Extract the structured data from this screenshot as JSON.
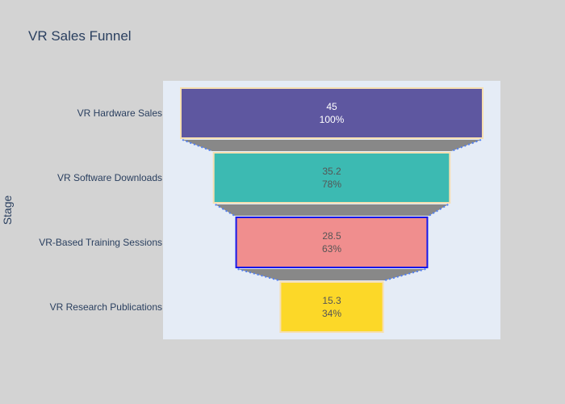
{
  "chart_data": {
    "type": "funnel",
    "title": "VR Sales Funnel",
    "ylabel": "Stage",
    "xlabel": "",
    "categories": [
      "VR Hardware Sales",
      "VR Software Downloads",
      "VR-Based Training Sessions",
      "VR Research Publications"
    ],
    "values": [
      45,
      35.2,
      28.5,
      15.3
    ],
    "value_labels": [
      "45",
      "35.2",
      "28.5",
      "15.3"
    ],
    "percent_labels": [
      "100%",
      "78%",
      "63%",
      "34%"
    ],
    "text_info": "value + percent initial",
    "colors": {
      "background": "#d3d3d3",
      "plot_background": "#e5ecf6",
      "bars": [
        "#5e57a0",
        "#3cbab2",
        "#f08e8e",
        "#fcd828"
      ],
      "bar_borders": [
        "#f6dfb1",
        "#f6dfb1",
        "#1717e8",
        "#f6dfb1"
      ],
      "label_colors": [
        "#ffffff",
        "#555555",
        "#555555",
        "#555555"
      ],
      "connector_fill": "#888888",
      "connector_line": "#4f7ef3",
      "text": "#2a3f5f"
    }
  }
}
